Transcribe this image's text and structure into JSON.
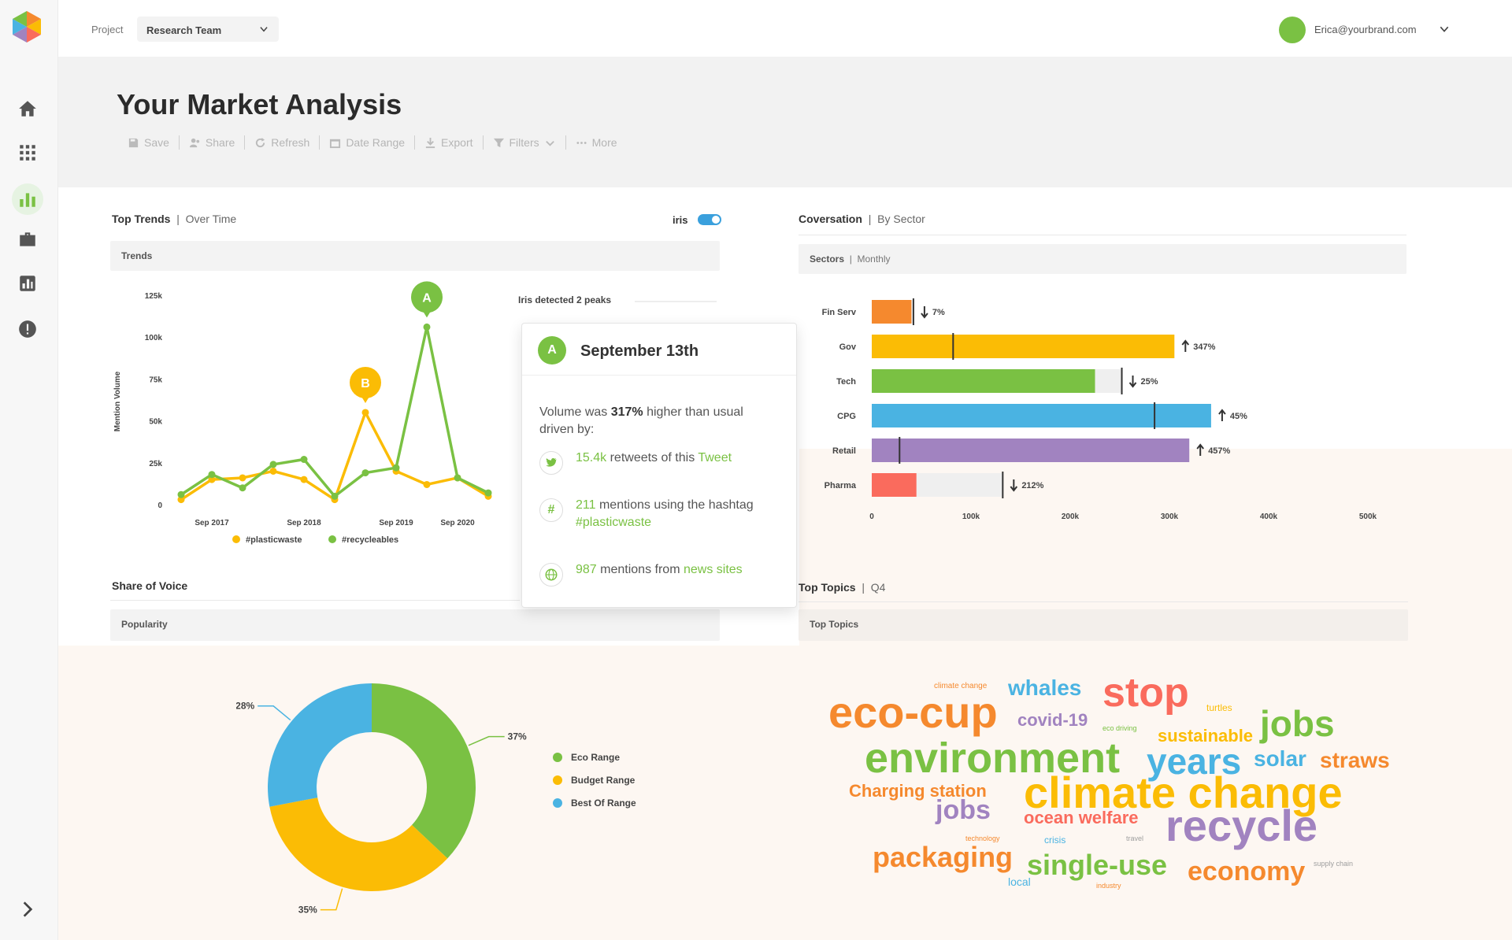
{
  "colors": {
    "green": "#7ac143",
    "yellow": "#fbbc05",
    "orange": "#f5892e",
    "blue": "#4ab3e2",
    "purple": "#a183c0",
    "red": "#fa6b5d",
    "gray": "#9e9e9e"
  },
  "sidebar": {
    "items": [
      {
        "icon": "home-icon"
      },
      {
        "icon": "apps-grid-icon"
      },
      {
        "icon": "bar-chart-icon"
      },
      {
        "icon": "briefcase-icon"
      },
      {
        "icon": "report-icon"
      },
      {
        "icon": "alert-icon"
      }
    ],
    "expand_icon": "chevron-right-icon"
  },
  "topbar": {
    "project_label": "Project",
    "project_value": "Research Team",
    "user_email": "Erica@yourbrand.com"
  },
  "header": {
    "title": "Your Market Analysis",
    "toolbar": {
      "save": "Save",
      "share": "Share",
      "refresh": "Refresh",
      "date_range": "Date Range",
      "export": "Export",
      "filters": "Filters",
      "more": "More"
    }
  },
  "top_trends": {
    "title": "Top Trends",
    "subtitle": "Over Time",
    "toggle_label": "iris",
    "toggle_on": true,
    "bar_label": "Trends",
    "peaks_label": "Iris detected 2 peaks",
    "peak_a": "A",
    "peak_b": "B"
  },
  "tooltip": {
    "badge": "A",
    "date": "September 13th",
    "desc_pre": "Volume was ",
    "desc_pct": "317%",
    "desc_post": " higher than usual driven by:",
    "row1_num": "15.4k",
    "row1_mid": " retweets of this ",
    "row1_link": "Tweet",
    "row2_num": "211",
    "row2_mid": " mentions using the hashtag ",
    "row2_link": "#plasticwaste",
    "row3_num": "987",
    "row3_mid": " mentions from ",
    "row3_link": "news sites"
  },
  "conversation": {
    "title": "Coversation",
    "subtitle": "By Sector",
    "bar_label": "Sectors",
    "bar_sub": "Monthly"
  },
  "share_of_voice": {
    "title": "Share of Voice",
    "bar_label": "Popularity"
  },
  "top_topics": {
    "title": "Top Topics",
    "subtitle": "Q4",
    "bar_label": "Top Topics"
  },
  "chart_data": [
    {
      "type": "line",
      "ylabel": "Mention Volume",
      "yticks": [
        "0",
        "25k",
        "50k",
        "75k",
        "100k",
        "125k"
      ],
      "ylim": [
        0,
        125000
      ],
      "xticks": [
        "Sep 2017",
        "Sep 2018",
        "Sep 2019",
        "Sep 2020"
      ],
      "x": [
        0,
        1,
        2,
        3,
        4,
        5,
        6,
        7,
        8,
        9,
        10
      ],
      "series": [
        {
          "name": "#plasticwaste",
          "color": "#fbbc05",
          "values": [
            3000,
            15000,
            16000,
            20000,
            15000,
            3000,
            55000,
            20000,
            12000,
            16000,
            5000
          ]
        },
        {
          "name": "#recycleables",
          "color": "#7ac143",
          "values": [
            6000,
            18000,
            10000,
            24000,
            27000,
            5000,
            19000,
            22000,
            106000,
            16000,
            7000
          ]
        }
      ],
      "peaks": [
        {
          "label": "A",
          "series": "#recycleables",
          "index": 8
        },
        {
          "label": "B",
          "series": "#plasticwaste",
          "index": 6
        }
      ],
      "legend": "bottom"
    },
    {
      "type": "bar",
      "orientation": "horizontal",
      "categories": [
        "Fin Serv",
        "Gov",
        "Tech",
        "CPG",
        "Retail",
        "Pharma"
      ],
      "values": [
        40000,
        305000,
        225000,
        342000,
        320000,
        45000
      ],
      "markers": [
        42000,
        82000,
        252000,
        285000,
        28000,
        132000
      ],
      "changes": [
        {
          "dir": "down",
          "text": "7%"
        },
        {
          "dir": "up",
          "text": "347%"
        },
        {
          "dir": "down",
          "text": "25%"
        },
        {
          "dir": "up",
          "text": "45%"
        },
        {
          "dir": "up",
          "text": "457%"
        },
        {
          "dir": "down",
          "text": "212%"
        }
      ],
      "colors": [
        "#f5892e",
        "#fbbc05",
        "#7ac143",
        "#4ab3e2",
        "#a183c0",
        "#fa6b5d"
      ],
      "xticks": [
        "0",
        "100k",
        "200k",
        "300k",
        "400k",
        "500k"
      ],
      "xlim": [
        0,
        500000
      ]
    },
    {
      "type": "pie",
      "donut": true,
      "slices": [
        {
          "name": "Eco Range",
          "value": 37,
          "label": "37%",
          "color": "#7ac143"
        },
        {
          "name": "Budget Range",
          "value": 35,
          "label": "35%",
          "color": "#fbbc05"
        },
        {
          "name": "Best Of Range",
          "value": 28,
          "label": "28%",
          "color": "#4ab3e2"
        }
      ],
      "legend": "right"
    }
  ],
  "wordcloud": [
    {
      "text": "climate change",
      "color": "#f5892e"
    },
    {
      "text": "whales",
      "color": "#4ab3e2"
    },
    {
      "text": "stop",
      "color": "#fa6b5d"
    },
    {
      "text": "eco-cup",
      "color": "#f5892e"
    },
    {
      "text": "covid-19",
      "color": "#a183c0"
    },
    {
      "text": "turtles",
      "color": "#fbbc05"
    },
    {
      "text": "jobs",
      "color": "#7ac143"
    },
    {
      "text": "eco driving",
      "color": "#7ac143"
    },
    {
      "text": "sustainable",
      "color": "#fbbc05"
    },
    {
      "text": "environment",
      "color": "#7ac143"
    },
    {
      "text": "years",
      "color": "#4ab3e2"
    },
    {
      "text": "solar",
      "color": "#4ab3e2"
    },
    {
      "text": "straws",
      "color": "#f5892e"
    },
    {
      "text": "Charging station",
      "color": "#f5892e"
    },
    {
      "text": "climate change",
      "color": "#fbbc05"
    },
    {
      "text": "jobs",
      "color": "#a183c0"
    },
    {
      "text": "ocean welfare",
      "color": "#fa6b5d"
    },
    {
      "text": "recycle",
      "color": "#a183c0"
    },
    {
      "text": "technology",
      "color": "#f5892e"
    },
    {
      "text": "crisis",
      "color": "#4ab3e2"
    },
    {
      "text": "travel",
      "color": "#9e9e9e"
    },
    {
      "text": "packaging",
      "color": "#f5892e"
    },
    {
      "text": "single-use",
      "color": "#7ac143"
    },
    {
      "text": "economy",
      "color": "#f5892e"
    },
    {
      "text": "supply chain",
      "color": "#9e9e9e"
    },
    {
      "text": "local",
      "color": "#4ab3e2"
    },
    {
      "text": "industry",
      "color": "#f5892e"
    }
  ]
}
